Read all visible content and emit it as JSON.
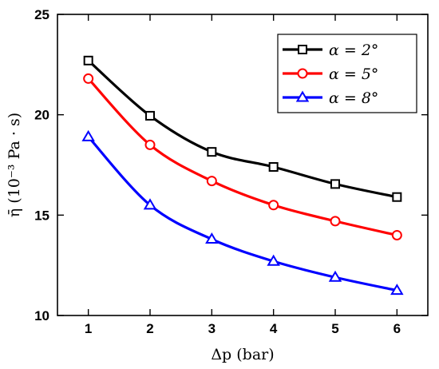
{
  "chart_data": {
    "type": "line",
    "xlabel": "Δp (bar)",
    "ylabel": "η̄ (10⁻³ Pa · s)",
    "x": [
      1,
      2,
      3,
      4,
      5,
      6
    ],
    "xlim": [
      0.5,
      6.5
    ],
    "ylim": [
      10,
      25
    ],
    "xticks": [
      1,
      2,
      3,
      4,
      5,
      6
    ],
    "yticks": [
      10,
      15,
      20,
      25
    ],
    "grid": false,
    "legend_position": "top-right",
    "series": [
      {
        "name": "α = 2°",
        "color": "#000000",
        "marker": "square",
        "values": [
          22.7,
          19.95,
          18.15,
          17.4,
          16.55,
          15.9
        ]
      },
      {
        "name": "α = 5°",
        "color": "#ff0000",
        "marker": "circle",
        "values": [
          21.8,
          18.5,
          16.7,
          15.5,
          14.7,
          14.0
        ]
      },
      {
        "name": "α = 8°",
        "color": "#0000ff",
        "marker": "triangle",
        "values": [
          18.9,
          15.5,
          13.8,
          12.7,
          11.9,
          11.25
        ]
      }
    ]
  }
}
